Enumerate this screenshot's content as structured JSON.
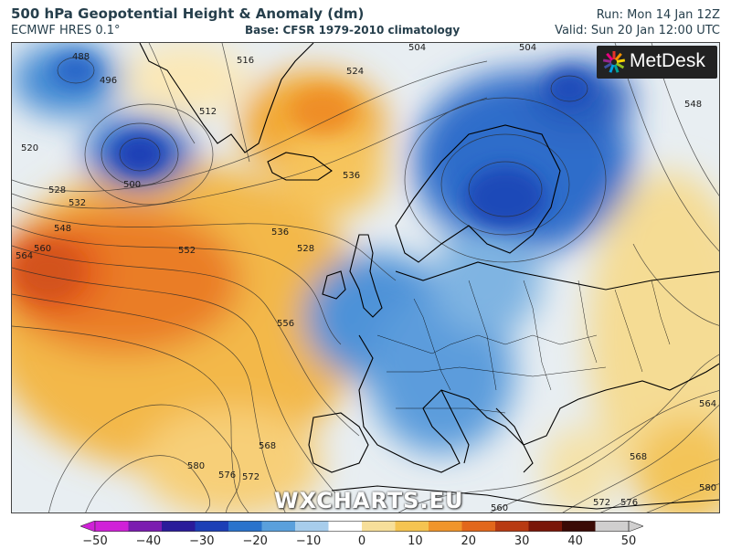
{
  "header": {
    "title": "500 hPa Geopotential Height & Anomaly (dm)",
    "model": "ECMWF HRES 0.1°",
    "base": "Base: CFSR 1979-2010 climatology",
    "run": "Run: Mon 14 Jan 12Z",
    "valid": "Valid: Sun 20 Jan 12:00 UTC"
  },
  "logo": {
    "text": "MetDesk",
    "icon": "metdesk-sunburst-icon"
  },
  "watermark": "WXCHARTS.EU",
  "map": {
    "contour_labels": [
      "488",
      "496",
      "500",
      "504",
      "512",
      "516",
      "520",
      "524",
      "528",
      "532",
      "536",
      "548",
      "552",
      "556",
      "560",
      "564",
      "568",
      "572",
      "576",
      "580"
    ],
    "anomaly_centres": [
      {
        "name": "low-greenland-west",
        "anomaly": -30
      },
      {
        "name": "low-scandinavia",
        "anomaly": -25
      },
      {
        "name": "high-iceland",
        "anomaly": 20
      },
      {
        "name": "high-atlantic",
        "anomaly": 25
      }
    ]
  },
  "colorbar": {
    "unit": "dm",
    "ticks": [
      "−50",
      "−40",
      "−30",
      "−20",
      "−10",
      "0",
      "10",
      "20",
      "30",
      "40",
      "50"
    ],
    "colors": [
      "#d021d8",
      "#7b1bb0",
      "#2a1b9a",
      "#1c3fb6",
      "#2a73cc",
      "#5aa0dc",
      "#a7cdec",
      "#ffffff",
      "#f7df9a",
      "#f5c451",
      "#f0952b",
      "#e2671b",
      "#b83a12",
      "#7a1608",
      "#3a0a05",
      "#d0cfcf"
    ]
  }
}
